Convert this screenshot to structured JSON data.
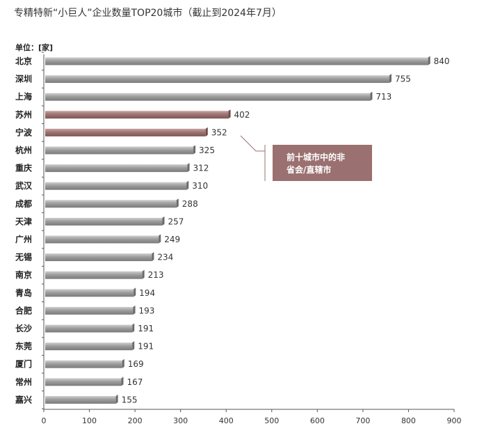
{
  "title": "专精特新“小巨人”企业数量TOP20城市（截止到2024年7月）",
  "unit_label": "单位：[家]",
  "annotation": {
    "line1": "前十城市中的非",
    "line2": "省会/直辖市"
  },
  "colors": {
    "default_bar": "#9a9a9a",
    "highlight_bar": "#9b7070",
    "annotation_bg": "#9b7070"
  },
  "chart_data": {
    "type": "bar",
    "orientation": "horizontal",
    "categories": [
      "北京",
      "深圳",
      "上海",
      "苏州",
      "宁波",
      "杭州",
      "重庆",
      "武汉",
      "成都",
      "天津",
      "广州",
      "无锡",
      "南京",
      "青岛",
      "合肥",
      "长沙",
      "东莞",
      "厦门",
      "常州",
      "嘉兴"
    ],
    "values": [
      840,
      755,
      713,
      402,
      352,
      325,
      312,
      310,
      288,
      257,
      249,
      234,
      213,
      194,
      193,
      191,
      191,
      169,
      167,
      155
    ],
    "highlighted": [
      "苏州",
      "宁波"
    ],
    "xlim": [
      0,
      900
    ],
    "xticks": [
      0,
      100,
      200,
      300,
      400,
      500,
      600,
      700,
      800,
      900
    ],
    "grid": false
  }
}
